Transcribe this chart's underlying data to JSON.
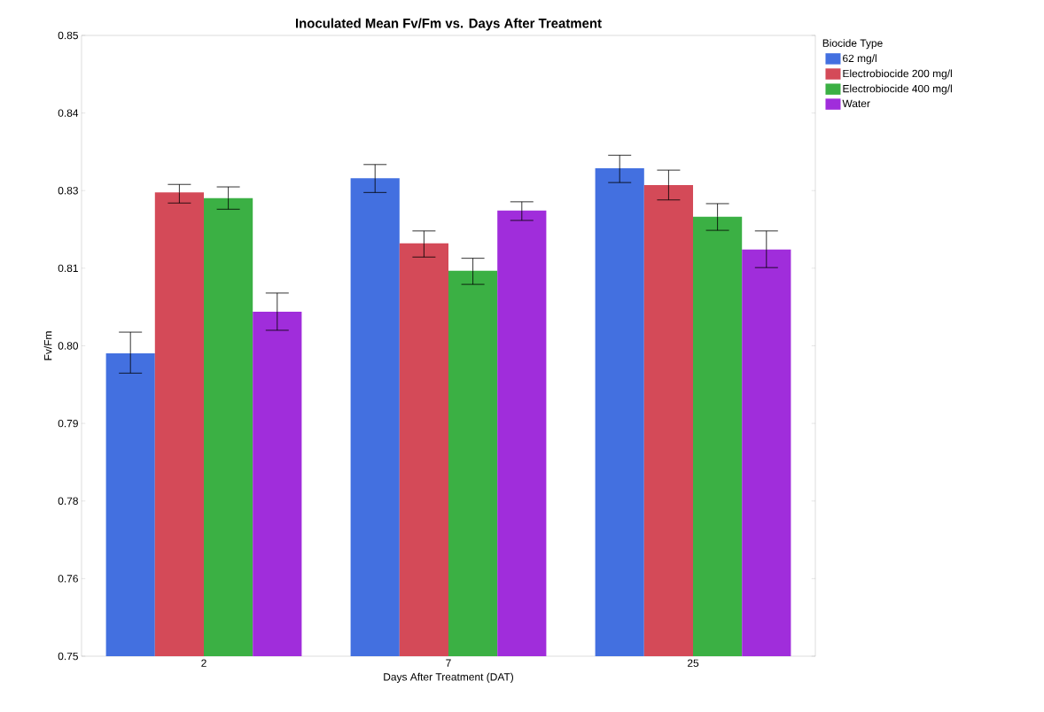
{
  "chart_data": {
    "type": "bar",
    "title": "Inoculated Mean Fv/Fm vs. Days After Treatment",
    "xlabel": "Days After Treatment (DAT)",
    "ylabel": "Fv/Fm",
    "legend_title": "Biocide Type",
    "categories": [
      "2",
      "7",
      "25"
    ],
    "series": [
      {
        "name": "62 mg/l",
        "color": "#4370e0",
        "values": [
          0.7988,
          0.827,
          0.8286
        ],
        "errors": [
          [
            0.7956,
            0.8022
          ],
          [
            0.8247,
            0.8292
          ],
          [
            0.8263,
            0.8307
          ]
        ]
      },
      {
        "name": "Electrobiocide 200 mg/l",
        "color": "#d44a58",
        "values": [
          0.8247,
          0.8165,
          0.8259
        ],
        "errors": [
          [
            0.823,
            0.826
          ],
          [
            0.8143,
            0.8185
          ],
          [
            0.8235,
            0.8283
          ]
        ]
      },
      {
        "name": "Electrobiocide 400 mg/l",
        "color": "#3bb044",
        "values": [
          0.8238,
          0.8121,
          0.8208
        ],
        "errors": [
          [
            0.822,
            0.8256
          ],
          [
            0.8099,
            0.8141
          ],
          [
            0.8186,
            0.8229
          ]
        ]
      },
      {
        "name": "Water",
        "color": "#a02ddb",
        "values": [
          0.8055,
          0.8218,
          0.8155
        ],
        "errors": [
          [
            0.8025,
            0.8085
          ],
          [
            0.8202,
            0.8232
          ],
          [
            0.8126,
            0.8185
          ]
        ]
      }
    ],
    "ylim": [
      0.75,
      0.85
    ],
    "yticks": [
      {
        "value": 0.75,
        "label": "0.75"
      },
      {
        "value": 0.7625,
        "label": "0.76"
      },
      {
        "value": 0.775,
        "label": "0.78"
      },
      {
        "value": 0.7875,
        "label": "0.79"
      },
      {
        "value": 0.8,
        "label": "0.80"
      },
      {
        "value": 0.8125,
        "label": "0.81"
      },
      {
        "value": 0.825,
        "label": "0.83"
      },
      {
        "value": 0.8375,
        "label": "0.84"
      },
      {
        "value": 0.85,
        "label": "0.85"
      }
    ],
    "grid": false,
    "legend": "right"
  }
}
